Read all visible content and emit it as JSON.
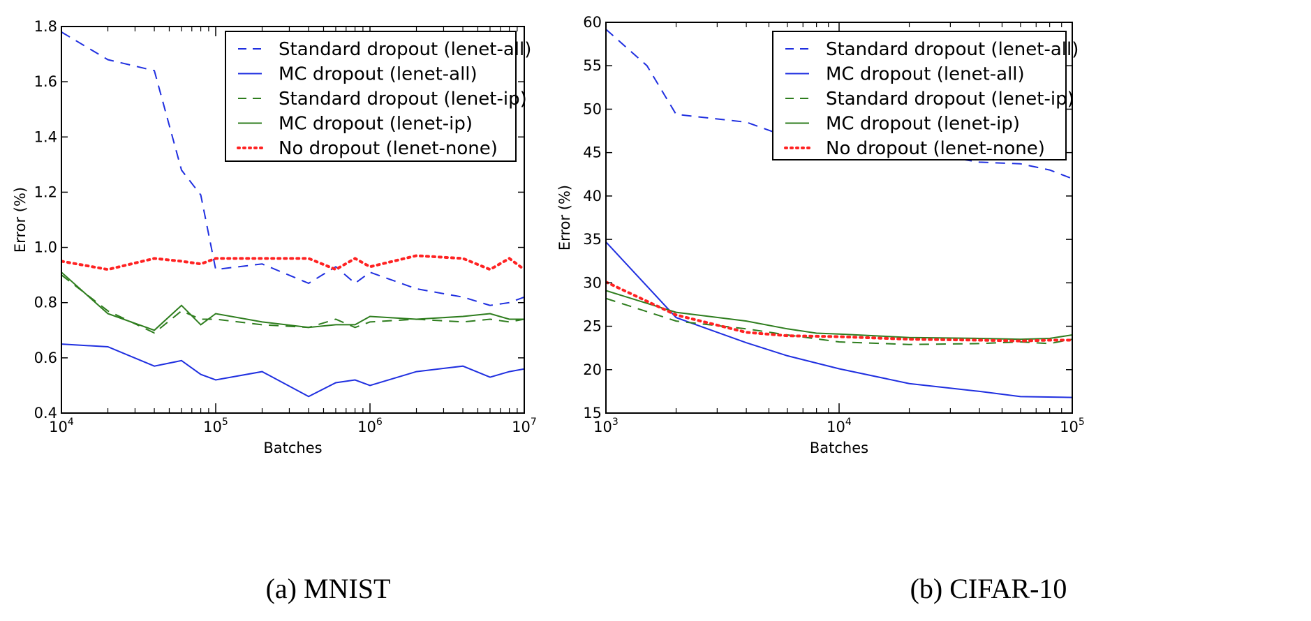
{
  "chart_data": [
    {
      "type": "line",
      "caption": "(a) MNIST",
      "xlabel": "Batches",
      "ylabel": "Error (%)",
      "xscale": "log",
      "xlim": [
        10000,
        10000000
      ],
      "ylim": [
        0.4,
        1.8
      ],
      "xticks": [
        {
          "value": 10000,
          "base": "10",
          "exp": "4"
        },
        {
          "value": 100000,
          "base": "10",
          "exp": "5"
        },
        {
          "value": 1000000,
          "base": "10",
          "exp": "6"
        },
        {
          "value": 10000000,
          "base": "10",
          "exp": "7"
        }
      ],
      "yticks": [
        "0.4",
        "0.6",
        "0.8",
        "1.0",
        "1.2",
        "1.4",
        "1.6",
        "1.8"
      ],
      "legend_position": "top-right",
      "series": [
        {
          "name": "Standard dropout (lenet-all)",
          "color": "#1f2fe0",
          "style": "dashed",
          "points": [
            [
              10000,
              1.78
            ],
            [
              20000,
              1.68
            ],
            [
              40000,
              1.64
            ],
            [
              60000,
              1.28
            ],
            [
              80000,
              1.19
            ],
            [
              100000,
              0.92
            ],
            [
              200000,
              0.94
            ],
            [
              400000,
              0.87
            ],
            [
              600000,
              0.93
            ],
            [
              800000,
              0.87
            ],
            [
              1000000,
              0.91
            ],
            [
              2000000,
              0.85
            ],
            [
              4000000,
              0.82
            ],
            [
              6000000,
              0.79
            ],
            [
              8000000,
              0.8
            ],
            [
              10000000,
              0.82
            ]
          ]
        },
        {
          "name": "MC dropout (lenet-all)",
          "color": "#1f2fe0",
          "style": "solid",
          "points": [
            [
              10000,
              0.65
            ],
            [
              20000,
              0.64
            ],
            [
              40000,
              0.57
            ],
            [
              60000,
              0.59
            ],
            [
              80000,
              0.54
            ],
            [
              100000,
              0.52
            ],
            [
              200000,
              0.55
            ],
            [
              400000,
              0.46
            ],
            [
              600000,
              0.51
            ],
            [
              800000,
              0.52
            ],
            [
              1000000,
              0.5
            ],
            [
              2000000,
              0.55
            ],
            [
              4000000,
              0.57
            ],
            [
              6000000,
              0.53
            ],
            [
              8000000,
              0.55
            ],
            [
              10000000,
              0.56
            ]
          ]
        },
        {
          "name": "Standard dropout (lenet-ip)",
          "color": "#2e7d1e",
          "style": "dashed",
          "points": [
            [
              10000,
              0.9
            ],
            [
              20000,
              0.77
            ],
            [
              40000,
              0.69
            ],
            [
              60000,
              0.77
            ],
            [
              80000,
              0.74
            ],
            [
              100000,
              0.74
            ],
            [
              200000,
              0.72
            ],
            [
              400000,
              0.71
            ],
            [
              600000,
              0.74
            ],
            [
              800000,
              0.71
            ],
            [
              1000000,
              0.73
            ],
            [
              2000000,
              0.74
            ],
            [
              4000000,
              0.73
            ],
            [
              6000000,
              0.74
            ],
            [
              8000000,
              0.73
            ],
            [
              10000000,
              0.74
            ]
          ]
        },
        {
          "name": "MC dropout (lenet-ip)",
          "color": "#2e7d1e",
          "style": "solid",
          "points": [
            [
              10000,
              0.91
            ],
            [
              20000,
              0.76
            ],
            [
              40000,
              0.7
            ],
            [
              60000,
              0.79
            ],
            [
              80000,
              0.72
            ],
            [
              100000,
              0.76
            ],
            [
              200000,
              0.73
            ],
            [
              400000,
              0.71
            ],
            [
              600000,
              0.72
            ],
            [
              800000,
              0.72
            ],
            [
              1000000,
              0.75
            ],
            [
              2000000,
              0.74
            ],
            [
              4000000,
              0.75
            ],
            [
              6000000,
              0.76
            ],
            [
              8000000,
              0.74
            ],
            [
              10000000,
              0.74
            ]
          ]
        },
        {
          "name": "No dropout (lenet-none)",
          "color": "#ff2222",
          "style": "dotted",
          "points": [
            [
              10000,
              0.95
            ],
            [
              20000,
              0.92
            ],
            [
              40000,
              0.96
            ],
            [
              60000,
              0.95
            ],
            [
              80000,
              0.94
            ],
            [
              100000,
              0.96
            ],
            [
              200000,
              0.96
            ],
            [
              400000,
              0.96
            ],
            [
              600000,
              0.92
            ],
            [
              800000,
              0.96
            ],
            [
              1000000,
              0.93
            ],
            [
              2000000,
              0.97
            ],
            [
              4000000,
              0.96
            ],
            [
              6000000,
              0.92
            ],
            [
              8000000,
              0.96
            ],
            [
              10000000,
              0.92
            ]
          ]
        }
      ]
    },
    {
      "type": "line",
      "caption": "(b) CIFAR-10",
      "xlabel": "Batches",
      "ylabel": "Error (%)",
      "xscale": "log",
      "xlim": [
        1000,
        100000
      ],
      "ylim": [
        15,
        60
      ],
      "xticks": [
        {
          "value": 1000,
          "base": "10",
          "exp": "3"
        },
        {
          "value": 10000,
          "base": "10",
          "exp": "4"
        },
        {
          "value": 100000,
          "base": "10",
          "exp": "5"
        }
      ],
      "yticks": [
        "15",
        "20",
        "25",
        "30",
        "35",
        "40",
        "45",
        "50",
        "55",
        "60"
      ],
      "legend_position": "top-right",
      "series": [
        {
          "name": "Standard dropout (lenet-all)",
          "color": "#1f2fe0",
          "style": "dashed",
          "points": [
            [
              1000,
              59.2
            ],
            [
              1500,
              55.0
            ],
            [
              2000,
              49.4
            ],
            [
              4000,
              48.5
            ],
            [
              6000,
              46.8
            ],
            [
              10000,
              46.0
            ],
            [
              20000,
              45.2
            ],
            [
              40000,
              43.9
            ],
            [
              60000,
              43.7
            ],
            [
              80000,
              43.0
            ],
            [
              100000,
              42.0
            ]
          ]
        },
        {
          "name": "MC dropout (lenet-all)",
          "color": "#1f2fe0",
          "style": "solid",
          "points": [
            [
              1000,
              34.7
            ],
            [
              2000,
              26.0
            ],
            [
              4000,
              23.1
            ],
            [
              6000,
              21.6
            ],
            [
              10000,
              20.1
            ],
            [
              20000,
              18.4
            ],
            [
              40000,
              17.5
            ],
            [
              60000,
              16.9
            ],
            [
              100000,
              16.8
            ]
          ]
        },
        {
          "name": "Standard dropout (lenet-ip)",
          "color": "#2e7d1e",
          "style": "dashed",
          "points": [
            [
              1000,
              28.2
            ],
            [
              2000,
              25.6
            ],
            [
              4000,
              24.7
            ],
            [
              6000,
              24.0
            ],
            [
              10000,
              23.2
            ],
            [
              20000,
              22.9
            ],
            [
              40000,
              23.0
            ],
            [
              60000,
              23.2
            ],
            [
              80000,
              23.0
            ],
            [
              100000,
              23.5
            ]
          ]
        },
        {
          "name": "MC dropout (lenet-ip)",
          "color": "#2e7d1e",
          "style": "solid",
          "points": [
            [
              1000,
              29.1
            ],
            [
              2000,
              26.6
            ],
            [
              4000,
              25.6
            ],
            [
              6000,
              24.7
            ],
            [
              8000,
              24.2
            ],
            [
              10000,
              24.1
            ],
            [
              20000,
              23.7
            ],
            [
              40000,
              23.6
            ],
            [
              60000,
              23.5
            ],
            [
              80000,
              23.6
            ],
            [
              100000,
              24.0
            ]
          ]
        },
        {
          "name": "No dropout (lenet-none)",
          "color": "#ff2222",
          "style": "dotted",
          "points": [
            [
              1000,
              30.1
            ],
            [
              2000,
              26.3
            ],
            [
              4000,
              24.3
            ],
            [
              6000,
              23.9
            ],
            [
              10000,
              23.8
            ],
            [
              20000,
              23.5
            ],
            [
              40000,
              23.4
            ],
            [
              60000,
              23.3
            ],
            [
              80000,
              23.4
            ],
            [
              100000,
              23.4
            ]
          ]
        }
      ]
    }
  ]
}
